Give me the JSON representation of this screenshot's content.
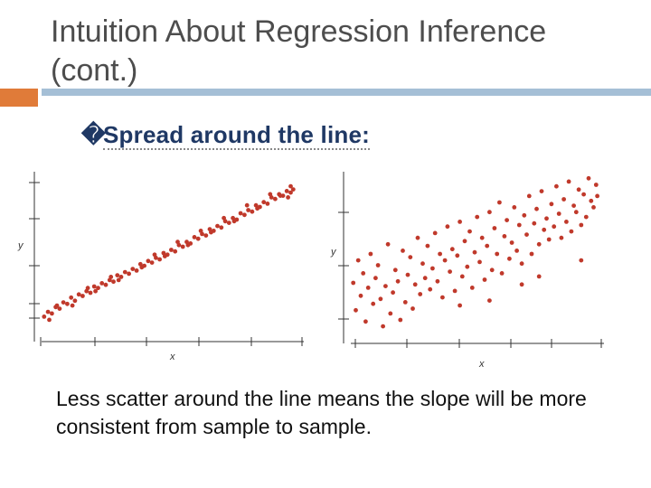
{
  "title": "Intuition About Regression Inference (cont.)",
  "bullet": {
    "glyph": "�",
    "text": "Spread around the line:"
  },
  "caption": "Less scatter around the line means the slope will be more consistent from sample to sample.",
  "colors": {
    "accent": "#e07b39",
    "bar": "#a5bfd6",
    "point": "#c0392b",
    "axis": "#333333"
  },
  "chart_data": [
    {
      "type": "scatter",
      "title": "",
      "xlabel": "x",
      "ylabel": "y",
      "xlim": [
        0,
        10
      ],
      "ylim": [
        0,
        10
      ],
      "grid": false,
      "points": [
        [
          0.1,
          1.0
        ],
        [
          0.25,
          1.3
        ],
        [
          0.4,
          1.2
        ],
        [
          0.55,
          1.6
        ],
        [
          0.7,
          1.5
        ],
        [
          0.85,
          1.9
        ],
        [
          1.0,
          1.8
        ],
        [
          1.15,
          2.2
        ],
        [
          1.3,
          2.0
        ],
        [
          1.45,
          2.4
        ],
        [
          1.6,
          2.3
        ],
        [
          1.75,
          2.6
        ],
        [
          1.9,
          2.5
        ],
        [
          2.05,
          2.9
        ],
        [
          2.2,
          2.8
        ],
        [
          2.35,
          3.1
        ],
        [
          2.5,
          3.0
        ],
        [
          2.65,
          3.3
        ],
        [
          2.8,
          3.2
        ],
        [
          2.95,
          3.6
        ],
        [
          3.1,
          3.5
        ],
        [
          3.25,
          3.8
        ],
        [
          3.4,
          3.7
        ],
        [
          3.55,
          4.0
        ],
        [
          3.7,
          3.9
        ],
        [
          3.85,
          4.3
        ],
        [
          4.0,
          4.2
        ],
        [
          4.15,
          4.5
        ],
        [
          4.3,
          4.4
        ],
        [
          4.45,
          4.7
        ],
        [
          4.6,
          4.6
        ],
        [
          4.75,
          5.0
        ],
        [
          4.9,
          4.9
        ],
        [
          5.05,
          5.2
        ],
        [
          5.2,
          5.1
        ],
        [
          5.35,
          5.5
        ],
        [
          5.5,
          5.4
        ],
        [
          5.65,
          5.7
        ],
        [
          5.8,
          5.6
        ],
        [
          5.95,
          6.0
        ],
        [
          6.1,
          5.9
        ],
        [
          6.25,
          6.2
        ],
        [
          6.4,
          6.1
        ],
        [
          6.55,
          6.5
        ],
        [
          6.7,
          6.4
        ],
        [
          6.85,
          6.7
        ],
        [
          7.0,
          6.6
        ],
        [
          7.15,
          7.0
        ],
        [
          7.3,
          6.9
        ],
        [
          7.45,
          7.2
        ],
        [
          7.6,
          7.1
        ],
        [
          7.75,
          7.5
        ],
        [
          7.9,
          7.4
        ],
        [
          8.05,
          7.7
        ],
        [
          8.2,
          7.6
        ],
        [
          8.35,
          8.0
        ],
        [
          8.5,
          7.9
        ],
        [
          8.65,
          8.2
        ],
        [
          8.8,
          8.1
        ],
        [
          8.95,
          8.5
        ],
        [
          9.1,
          8.4
        ],
        [
          9.25,
          8.7
        ],
        [
          9.4,
          8.6
        ],
        [
          9.55,
          8.9
        ],
        [
          9.7,
          8.8
        ],
        [
          9.8,
          9.0
        ],
        [
          0.3,
          0.8
        ],
        [
          1.2,
          1.7
        ],
        [
          2.1,
          2.6
        ],
        [
          3.0,
          3.3
        ],
        [
          3.9,
          4.1
        ],
        [
          4.8,
          4.8
        ],
        [
          5.7,
          5.5
        ],
        [
          6.6,
          6.3
        ],
        [
          7.5,
          7.0
        ],
        [
          8.4,
          7.8
        ],
        [
          9.3,
          8.6
        ],
        [
          9.7,
          9.2
        ],
        [
          0.6,
          1.7
        ],
        [
          1.8,
          2.8
        ],
        [
          2.7,
          3.5
        ],
        [
          4.4,
          4.9
        ],
        [
          5.3,
          5.7
        ],
        [
          6.2,
          6.4
        ],
        [
          7.1,
          7.2
        ],
        [
          8.0,
          8.0
        ],
        [
          8.9,
          8.7
        ],
        [
          9.6,
          8.5
        ]
      ]
    },
    {
      "type": "scatter",
      "title": "",
      "xlabel": "x",
      "ylabel": "y",
      "xlim": [
        0,
        10
      ],
      "ylim": [
        0,
        10
      ],
      "grid": false,
      "points": [
        [
          0.1,
          3.2
        ],
        [
          0.2,
          1.5
        ],
        [
          0.3,
          4.6
        ],
        [
          0.4,
          2.4
        ],
        [
          0.5,
          3.8
        ],
        [
          0.6,
          0.8
        ],
        [
          0.7,
          2.9
        ],
        [
          0.8,
          5.0
        ],
        [
          0.9,
          1.9
        ],
        [
          1.0,
          3.5
        ],
        [
          1.1,
          4.3
        ],
        [
          1.2,
          2.2
        ],
        [
          1.3,
          0.5
        ],
        [
          1.4,
          3.0
        ],
        [
          1.5,
          5.6
        ],
        [
          1.6,
          1.3
        ],
        [
          1.7,
          2.6
        ],
        [
          1.8,
          4.0
        ],
        [
          1.9,
          3.3
        ],
        [
          2.0,
          0.9
        ],
        [
          2.1,
          5.2
        ],
        [
          2.2,
          2.0
        ],
        [
          2.3,
          3.7
        ],
        [
          2.4,
          4.8
        ],
        [
          2.5,
          1.6
        ],
        [
          2.6,
          3.1
        ],
        [
          2.7,
          6.0
        ],
        [
          2.8,
          2.5
        ],
        [
          2.9,
          4.4
        ],
        [
          3.0,
          3.5
        ],
        [
          3.1,
          5.5
        ],
        [
          3.2,
          2.8
        ],
        [
          3.3,
          4.1
        ],
        [
          3.4,
          6.3
        ],
        [
          3.5,
          3.3
        ],
        [
          3.6,
          5.0
        ],
        [
          3.7,
          2.3
        ],
        [
          3.8,
          4.6
        ],
        [
          3.9,
          6.7
        ],
        [
          4.0,
          3.9
        ],
        [
          4.1,
          5.3
        ],
        [
          4.2,
          2.7
        ],
        [
          4.3,
          4.9
        ],
        [
          4.4,
          7.0
        ],
        [
          4.5,
          3.6
        ],
        [
          4.6,
          5.8
        ],
        [
          4.7,
          4.2
        ],
        [
          4.8,
          6.4
        ],
        [
          4.9,
          2.9
        ],
        [
          5.0,
          5.1
        ],
        [
          5.1,
          7.3
        ],
        [
          5.2,
          4.5
        ],
        [
          5.3,
          6.0
        ],
        [
          5.4,
          3.4
        ],
        [
          5.5,
          5.5
        ],
        [
          5.6,
          7.6
        ],
        [
          5.7,
          4.0
        ],
        [
          5.8,
          6.6
        ],
        [
          5.9,
          5.0
        ],
        [
          6.0,
          8.2
        ],
        [
          6.1,
          3.8
        ],
        [
          6.2,
          6.1
        ],
        [
          6.3,
          7.1
        ],
        [
          6.4,
          4.7
        ],
        [
          6.5,
          5.7
        ],
        [
          6.6,
          7.9
        ],
        [
          6.7,
          5.2
        ],
        [
          6.8,
          6.8
        ],
        [
          6.9,
          4.4
        ],
        [
          7.0,
          7.4
        ],
        [
          7.1,
          6.2
        ],
        [
          7.2,
          8.6
        ],
        [
          7.3,
          5.0
        ],
        [
          7.4,
          6.9
        ],
        [
          7.5,
          7.8
        ],
        [
          7.6,
          5.6
        ],
        [
          7.7,
          8.9
        ],
        [
          7.8,
          6.5
        ],
        [
          7.9,
          7.2
        ],
        [
          8.0,
          5.9
        ],
        [
          8.1,
          8.1
        ],
        [
          8.2,
          6.7
        ],
        [
          8.3,
          9.2
        ],
        [
          8.4,
          7.5
        ],
        [
          8.5,
          6.0
        ],
        [
          8.6,
          8.4
        ],
        [
          8.7,
          7.0
        ],
        [
          8.8,
          9.5
        ],
        [
          8.9,
          6.4
        ],
        [
          9.0,
          8.0
        ],
        [
          9.1,
          7.6
        ],
        [
          9.2,
          9.0
        ],
        [
          9.3,
          6.8
        ],
        [
          9.4,
          8.7
        ],
        [
          9.5,
          7.3
        ],
        [
          9.6,
          9.7
        ],
        [
          9.7,
          8.3
        ],
        [
          9.8,
          7.9
        ],
        [
          9.9,
          9.3
        ],
        [
          9.95,
          8.6
        ],
        [
          5.6,
          2.1
        ],
        [
          6.9,
          3.1
        ],
        [
          9.3,
          4.6
        ],
        [
          7.6,
          3.6
        ],
        [
          4.4,
          1.8
        ]
      ]
    }
  ]
}
